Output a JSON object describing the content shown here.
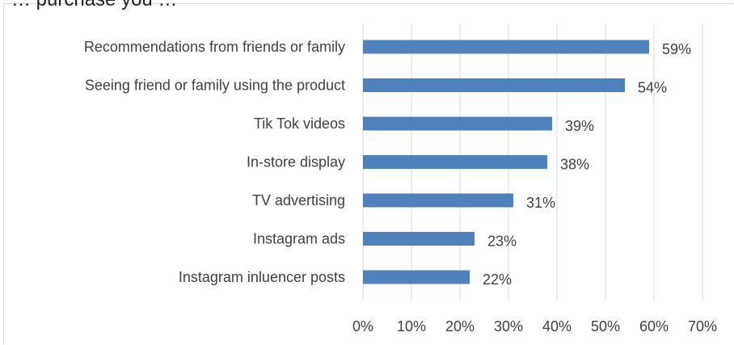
{
  "chart_title_fragment": "… purchase you …",
  "chart_data": {
    "type": "bar",
    "orientation": "horizontal",
    "categories": [
      "Recommendations from friends or family",
      "Seeing friend or family using the product",
      "Tik Tok videos",
      "In-store display",
      "TV advertising",
      "Instagram ads",
      "Instagram inluencer posts"
    ],
    "values": [
      59,
      54,
      39,
      38,
      31,
      23,
      22
    ],
    "value_labels": [
      "59%",
      "54%",
      "39%",
      "38%",
      "31%",
      "23%",
      "22%"
    ],
    "x_ticks": [
      "0%",
      "10%",
      "20%",
      "30%",
      "40%",
      "50%",
      "60%",
      "70%"
    ],
    "xlim": [
      0,
      70
    ],
    "grid": true,
    "legend": "none",
    "colors": {
      "bar": "#4f81bd",
      "grid": "#d9d9d9",
      "text": "#404040"
    }
  }
}
